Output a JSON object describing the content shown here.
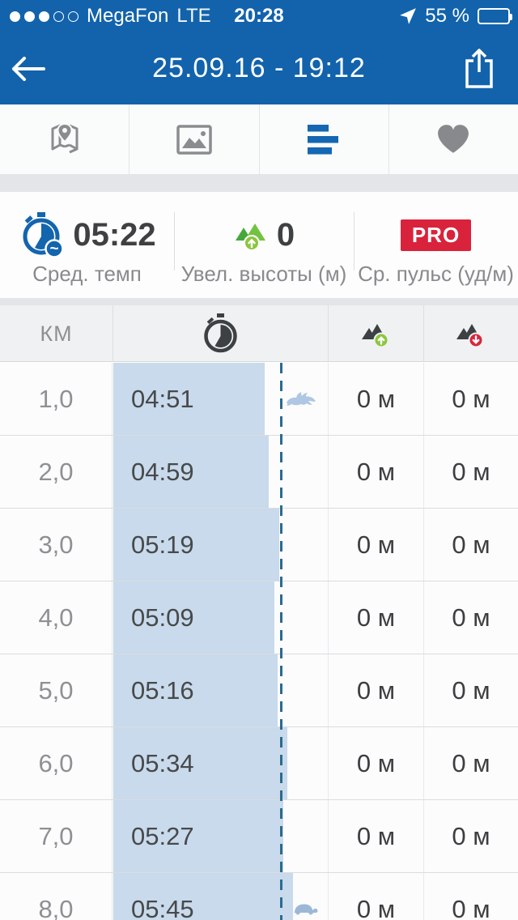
{
  "colors": {
    "header_blue": "#1263AC",
    "accent_blue": "#1467B2",
    "bar_fill": "#C8DAEB",
    "avg_line": "#2B6B8F",
    "pro_red": "#D9233C",
    "gain_green": "#8CC63E",
    "loss_red": "#D8263C"
  },
  "status_bar": {
    "signal_filled_dots": 3,
    "signal_total_dots": 5,
    "carrier": "MegaFon",
    "network": "LTE",
    "time": "20:28",
    "location_icon": "location-arrow-icon",
    "battery_text": "55 %",
    "battery_level": 0.55
  },
  "nav_bar": {
    "back_icon": "back-arrow-icon",
    "title": "25.09.16 - 19:12",
    "share_icon": "share-icon"
  },
  "tab_bar": {
    "tabs": [
      {
        "name": "map",
        "icon": "map-icon",
        "selected": false
      },
      {
        "name": "photos",
        "icon": "photo-icon",
        "selected": false
      },
      {
        "name": "splits",
        "icon": "splits-icon",
        "selected": true
      },
      {
        "name": "heart-rate",
        "icon": "heart-icon",
        "selected": false
      }
    ]
  },
  "stats": {
    "avg_pace": {
      "icon": "pace-stopwatch-icon",
      "value": "05:22",
      "label": "Сред. темп"
    },
    "elevation_gain": {
      "icon": "elevation-gain-icon",
      "value": "0",
      "label": "Увел. высоты (м)"
    },
    "heart_rate": {
      "icon": "pro-badge",
      "badge": "PRO",
      "label": "Ср. пульс (уд/м)"
    }
  },
  "splits_table": {
    "header": {
      "km_label": "КМ",
      "pace_icon": "stopwatch-icon",
      "gain_icon": "mountain-up-icon",
      "loss_icon": "mountain-down-icon"
    },
    "avg_pace": "05:22",
    "rows": [
      {
        "km": "1,0",
        "pace": "04:51",
        "gain": "0 м",
        "loss": "0 м",
        "marker": "rabbit-icon"
      },
      {
        "km": "2,0",
        "pace": "04:59",
        "gain": "0 м",
        "loss": "0 м",
        "marker": null
      },
      {
        "km": "3,0",
        "pace": "05:19",
        "gain": "0 м",
        "loss": "0 м",
        "marker": null
      },
      {
        "km": "4,0",
        "pace": "05:09",
        "gain": "0 м",
        "loss": "0 м",
        "marker": null
      },
      {
        "km": "5,0",
        "pace": "05:16",
        "gain": "0 м",
        "loss": "0 м",
        "marker": null
      },
      {
        "km": "6,0",
        "pace": "05:34",
        "gain": "0 м",
        "loss": "0 м",
        "marker": null
      },
      {
        "km": "7,0",
        "pace": "05:27",
        "gain": "0 м",
        "loss": "0 м",
        "marker": null
      },
      {
        "km": "8,0",
        "pace": "05:45",
        "gain": "0 м",
        "loss": "0 м",
        "marker": "turtle-icon"
      }
    ]
  }
}
